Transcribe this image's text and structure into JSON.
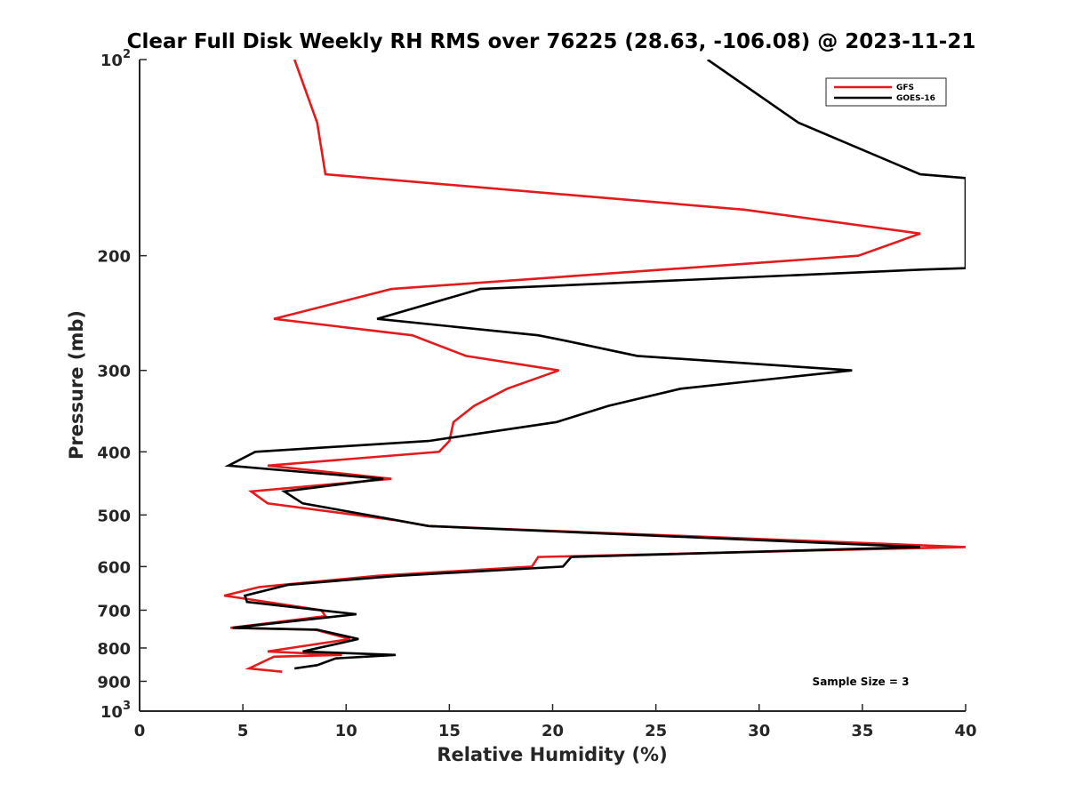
{
  "chart_data": {
    "type": "line",
    "title": "Clear Full Disk Weekly RH RMS over 76225 (28.63, -106.08) @ 2023-11-21",
    "xlabel": "Relative Humidity (%)",
    "ylabel": "Pressure (mb)",
    "xlim": [
      0,
      40
    ],
    "ylim": [
      100,
      1000
    ],
    "yscale": "log",
    "yreversed": true,
    "x_ticks": [
      0,
      5,
      10,
      15,
      20,
      25,
      30,
      35,
      40
    ],
    "x_tick_labels": [
      "0",
      "5",
      "10",
      "15",
      "20",
      "25",
      "30",
      "35",
      "40"
    ],
    "y_ticks": [
      {
        "value": 100,
        "base": "10",
        "exp": "2"
      },
      {
        "value": 200,
        "label": "200"
      },
      {
        "value": 300,
        "label": "300"
      },
      {
        "value": 400,
        "label": "400"
      },
      {
        "value": 500,
        "label": "500"
      },
      {
        "value": 600,
        "label": "600"
      },
      {
        "value": 700,
        "label": "700"
      },
      {
        "value": 800,
        "label": "800"
      },
      {
        "value": 900,
        "label": "900"
      },
      {
        "value": 1000,
        "base": "10",
        "exp": "3"
      }
    ],
    "legend_position": "top-right",
    "annotation": "Sample Size = 3",
    "series": [
      {
        "name": "GFS",
        "color": "#e41a1c",
        "points": [
          [
            7.5,
            100
          ],
          [
            8.6,
            125
          ],
          [
            9.0,
            150
          ],
          [
            29.3,
            170
          ],
          [
            37.8,
            185
          ],
          [
            34.8,
            200
          ],
          [
            12.2,
            225
          ],
          [
            6.5,
            250
          ],
          [
            13.2,
            265
          ],
          [
            15.8,
            285
          ],
          [
            20.3,
            300
          ],
          [
            17.8,
            320
          ],
          [
            16.2,
            340
          ],
          [
            15.2,
            360
          ],
          [
            15.0,
            385
          ],
          [
            14.5,
            400
          ],
          [
            6.2,
            420
          ],
          [
            12.2,
            440
          ],
          [
            5.4,
            460
          ],
          [
            6.2,
            480
          ],
          [
            12.5,
            510
          ],
          [
            14.0,
            520
          ],
          [
            40.0,
            560
          ],
          [
            19.3,
            580
          ],
          [
            19.0,
            600
          ],
          [
            11.5,
            620
          ],
          [
            5.8,
            645
          ],
          [
            4.1,
            665
          ],
          [
            5.5,
            675
          ],
          [
            8.8,
            700
          ],
          [
            9.0,
            715
          ],
          [
            4.4,
            745
          ],
          [
            8.5,
            750
          ],
          [
            10.2,
            775
          ],
          [
            6.2,
            810
          ],
          [
            9.8,
            820
          ],
          [
            6.5,
            825
          ],
          [
            5.3,
            860
          ],
          [
            6.9,
            870
          ]
        ]
      },
      {
        "name": "GOES-16",
        "color": "#000000",
        "points": [
          [
            27.5,
            100
          ],
          [
            31.9,
            125
          ],
          [
            37.8,
            150
          ],
          [
            40.0,
            152
          ],
          [
            40.0,
            209
          ],
          [
            38.0,
            210
          ],
          [
            16.5,
            225
          ],
          [
            11.5,
            250
          ],
          [
            19.3,
            265
          ],
          [
            20.6,
            270
          ],
          [
            24.1,
            285
          ],
          [
            34.5,
            300
          ],
          [
            26.2,
            320
          ],
          [
            22.7,
            340
          ],
          [
            20.2,
            360
          ],
          [
            14.0,
            385
          ],
          [
            5.6,
            400
          ],
          [
            4.3,
            420
          ],
          [
            11.8,
            440
          ],
          [
            7.0,
            460
          ],
          [
            7.9,
            480
          ],
          [
            11.8,
            505
          ],
          [
            14.0,
            520
          ],
          [
            37.8,
            560
          ],
          [
            20.9,
            580
          ],
          [
            20.5,
            600
          ],
          [
            12.5,
            620
          ],
          [
            7.2,
            640
          ],
          [
            5.1,
            665
          ],
          [
            5.2,
            680
          ],
          [
            10.5,
            710
          ],
          [
            4.5,
            745
          ],
          [
            8.6,
            750
          ],
          [
            10.6,
            775
          ],
          [
            7.9,
            810
          ],
          [
            12.4,
            820
          ],
          [
            9.5,
            830
          ],
          [
            8.6,
            850
          ],
          [
            7.5,
            860
          ]
        ]
      }
    ]
  }
}
